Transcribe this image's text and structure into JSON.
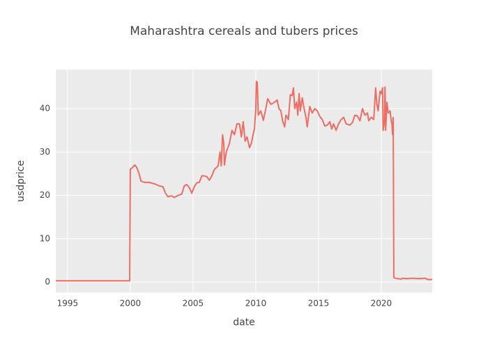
{
  "chart_data": {
    "type": "line",
    "title": "Maharashtra cereals and tubers prices",
    "x_label": "date",
    "y_label": "usdprice",
    "color": "#ef6c63",
    "grid": true,
    "xlim": [
      1994.06,
      2024.06
    ],
    "ylim": [
      -2.4,
      49
    ],
    "xticks": [
      1995,
      2000,
      2005,
      2010,
      2015,
      2020
    ],
    "yticks": [
      0,
      10,
      20,
      30,
      40
    ],
    "x": [
      1994.06,
      1997,
      1999.95,
      2000.0,
      2000.2,
      2000.35,
      2000.5,
      2000.7,
      2000.85,
      2001.1,
      2001.5,
      2002,
      2002.3,
      2002.6,
      2002.8,
      2003,
      2003.3,
      2003.5,
      2003.8,
      2004.1,
      2004.3,
      2004.5,
      2004.7,
      2004.9,
      2005.1,
      2005.3,
      2005.5,
      2005.7,
      2005.9,
      2006.1,
      2006.3,
      2006.5,
      2006.7,
      2006.9,
      2007.0,
      2007.15,
      2007.25,
      2007.35,
      2007.45,
      2007.5,
      2007.65,
      2007.9,
      2008.1,
      2008.3,
      2008.5,
      2008.7,
      2008.85,
      2009.0,
      2009.15,
      2009.3,
      2009.5,
      2009.65,
      2009.75,
      2009.9,
      2010.0,
      2010.05,
      2010.12,
      2010.2,
      2010.4,
      2010.6,
      2010.8,
      2010.95,
      2011.2,
      2011.5,
      2011.7,
      2011.85,
      2012.0,
      2012.15,
      2012.3,
      2012.4,
      2012.6,
      2012.75,
      2012.9,
      2013.0,
      2013.1,
      2013.25,
      2013.35,
      2013.45,
      2013.55,
      2013.7,
      2013.85,
      2014.0,
      2014.1,
      2014.3,
      2014.5,
      2014.7,
      2014.9,
      2015.1,
      2015.3,
      2015.5,
      2015.7,
      2015.9,
      2016.05,
      2016.2,
      2016.4,
      2016.6,
      2016.8,
      2017.0,
      2017.2,
      2017.5,
      2017.7,
      2017.9,
      2018.1,
      2018.3,
      2018.5,
      2018.7,
      2018.9,
      2019.0,
      2019.2,
      2019.4,
      2019.55,
      2019.65,
      2019.75,
      2019.9,
      2020.0,
      2020.1,
      2020.15,
      2020.25,
      2020.3,
      2020.35,
      2020.45,
      2020.55,
      2020.7,
      2020.8,
      2020.85,
      2020.9,
      2020.95,
      2021.0,
      2021.3,
      2021.6,
      2021.7,
      2022,
      2022.5,
      2023,
      2023.5,
      2023.7,
      2024.06
    ],
    "values": [
      0.3,
      0.3,
      0.3,
      26,
      26.5,
      27,
      26.5,
      25,
      23.3,
      23,
      23,
      22.6,
      22.2,
      22,
      20.5,
      19.7,
      19.9,
      19.5,
      20,
      20.3,
      22.2,
      22.5,
      21.8,
      20.5,
      22,
      22.9,
      23,
      24.5,
      24.5,
      24.3,
      23.5,
      24.5,
      26,
      26.5,
      26.8,
      30,
      26.8,
      34,
      32,
      27,
      30,
      32,
      35,
      34,
      36.5,
      36.5,
      33.5,
      37,
      32.5,
      33.5,
      31,
      32,
      33.5,
      35.5,
      40,
      46.3,
      46,
      38.5,
      39.5,
      37.3,
      40,
      42.3,
      41,
      41.5,
      42,
      40,
      39.5,
      37,
      35.8,
      38.5,
      37.5,
      43.2,
      43,
      44.8,
      40,
      41.5,
      38.5,
      43.5,
      39.5,
      42.5,
      40,
      38,
      35.8,
      40.5,
      39,
      40,
      39.5,
      38.2,
      37.5,
      36,
      36.2,
      37,
      35.3,
      36.5,
      35,
      36.5,
      37.5,
      38,
      36.5,
      36.2,
      36.8,
      38.5,
      38.3,
      37.2,
      40,
      38.5,
      39,
      37.2,
      38,
      37.5,
      44.8,
      41,
      39.5,
      44,
      43.5,
      44.8,
      35,
      37,
      45,
      35,
      41.5,
      39,
      39.5,
      37,
      36.5,
      34,
      38,
      1,
      0.8,
      0.7,
      0.9,
      0.8,
      0.9,
      0.8,
      0.9,
      0.6,
      0.6
    ]
  }
}
